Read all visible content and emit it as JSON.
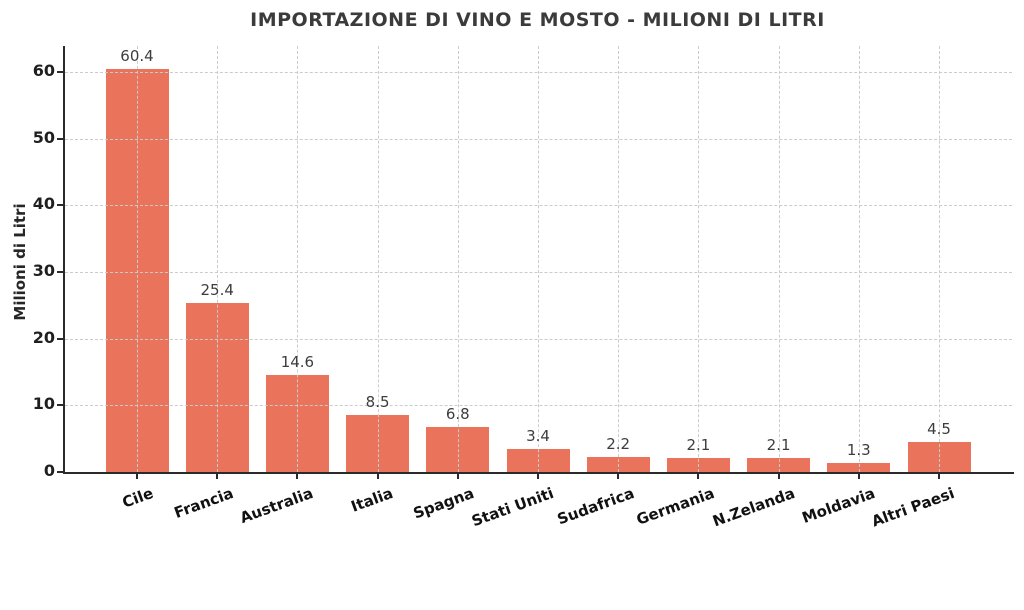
{
  "chart_data": {
    "type": "bar",
    "title": "IMPORTAZIONE DI VINO E MOSTO - MILIONI DI LITRI",
    "ylabel": "Milioni di Litri",
    "xlabel": "",
    "categories": [
      "Cile",
      "Francia",
      "Australia",
      "Italia",
      "Spagna",
      "Stati Uniti",
      "Sudafrica",
      "Germania",
      "N.Zelanda",
      "Moldavia",
      "Altri Paesi"
    ],
    "values": [
      60.4,
      25.4,
      14.6,
      8.5,
      6.8,
      3.4,
      2.2,
      2.1,
      2.1,
      1.3,
      4.5
    ],
    "bar_labels": [
      "60.4",
      "25.4",
      "14.6",
      "8.5",
      "6.8",
      "3.4",
      "2.2",
      "2.1",
      "2.1",
      "1.3",
      "4.5"
    ],
    "yticks": [
      0,
      10,
      20,
      30,
      40,
      50,
      60
    ],
    "ylim": [
      0,
      63
    ],
    "grid": "dashed-horizontal-and-vertical",
    "grid_above_bars": true,
    "legend": "none",
    "bar_color": "#E9745B",
    "axis_color": "#2a2a2a",
    "grid_color": "#cbcbcb",
    "title_color": "#3b3b3b",
    "value_label_color": "#3d3d3d",
    "tick_label_color": "#1f1f1f",
    "category_label_color": "#111111"
  }
}
